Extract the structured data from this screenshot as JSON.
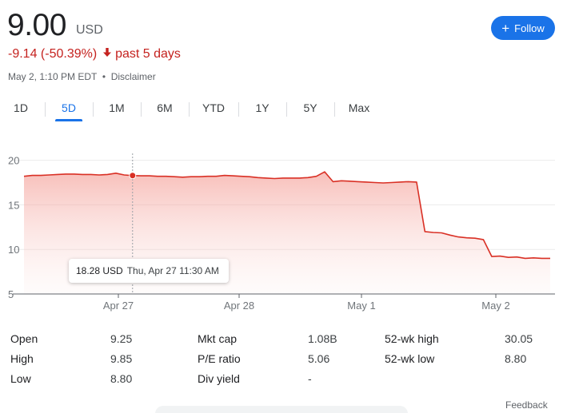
{
  "quote": {
    "price": "9.00",
    "currency": "USD",
    "change": "-9.14 (-50.39%)",
    "period": "past 5 days",
    "timestamp": "May 2, 1:10 PM EDT",
    "disclaimer": "Disclaimer",
    "down_color": "#c5221f"
  },
  "follow": {
    "label": "Follow",
    "icon": "plus-icon",
    "color": "#1a73e8"
  },
  "tabs": [
    {
      "label": "1D"
    },
    {
      "label": "5D",
      "active": true
    },
    {
      "label": "1M"
    },
    {
      "label": "6M"
    },
    {
      "label": "YTD"
    },
    {
      "label": "1Y"
    },
    {
      "label": "5Y"
    },
    {
      "label": "Max"
    }
  ],
  "chart_data": {
    "type": "area",
    "y_ticks": [
      20,
      15,
      10,
      5
    ],
    "ylim": [
      5,
      20.5
    ],
    "x_tick_labels": [
      "Apr 27",
      "Apr 28",
      "May 1",
      "May 2"
    ],
    "grid": true,
    "line_color": "#d93025",
    "series": [
      {
        "values": [
          18.2,
          18.3,
          18.3,
          18.35,
          18.4,
          18.45,
          18.45,
          18.4,
          18.4,
          18.35,
          18.4,
          18.55,
          18.35,
          18.28,
          18.25,
          18.25,
          18.2,
          18.2,
          18.15,
          18.1,
          18.15,
          18.15,
          18.2,
          18.2,
          18.3,
          18.25,
          18.2,
          18.15,
          18.05,
          18.0,
          17.95,
          18.0,
          18.0,
          18.0,
          18.05,
          18.2,
          18.7,
          17.6,
          17.7,
          17.65,
          17.6,
          17.55,
          17.5,
          17.45,
          17.5,
          17.55,
          17.6,
          17.55,
          12.0,
          11.9,
          11.85,
          11.6,
          11.4,
          11.3,
          11.25,
          11.1,
          9.2,
          9.25,
          9.1,
          9.15,
          9.0,
          9.05,
          9.0,
          9.0
        ]
      }
    ],
    "hover": {
      "index": 13,
      "price": "18.28 USD",
      "date": "Thu, Apr 27 11:30 AM"
    }
  },
  "stats": {
    "open": {
      "label": "Open",
      "value": "9.25"
    },
    "high": {
      "label": "High",
      "value": "9.85"
    },
    "low": {
      "label": "Low",
      "value": "8.80"
    },
    "mkt_cap": {
      "label": "Mkt cap",
      "value": "1.08B"
    },
    "pe": {
      "label": "P/E ratio",
      "value": "5.06"
    },
    "div": {
      "label": "Div yield",
      "value": "-"
    },
    "wk_high": {
      "label": "52-wk high",
      "value": "30.05"
    },
    "wk_low": {
      "label": "52-wk low",
      "value": "8.80"
    }
  },
  "feedback": "Feedback"
}
